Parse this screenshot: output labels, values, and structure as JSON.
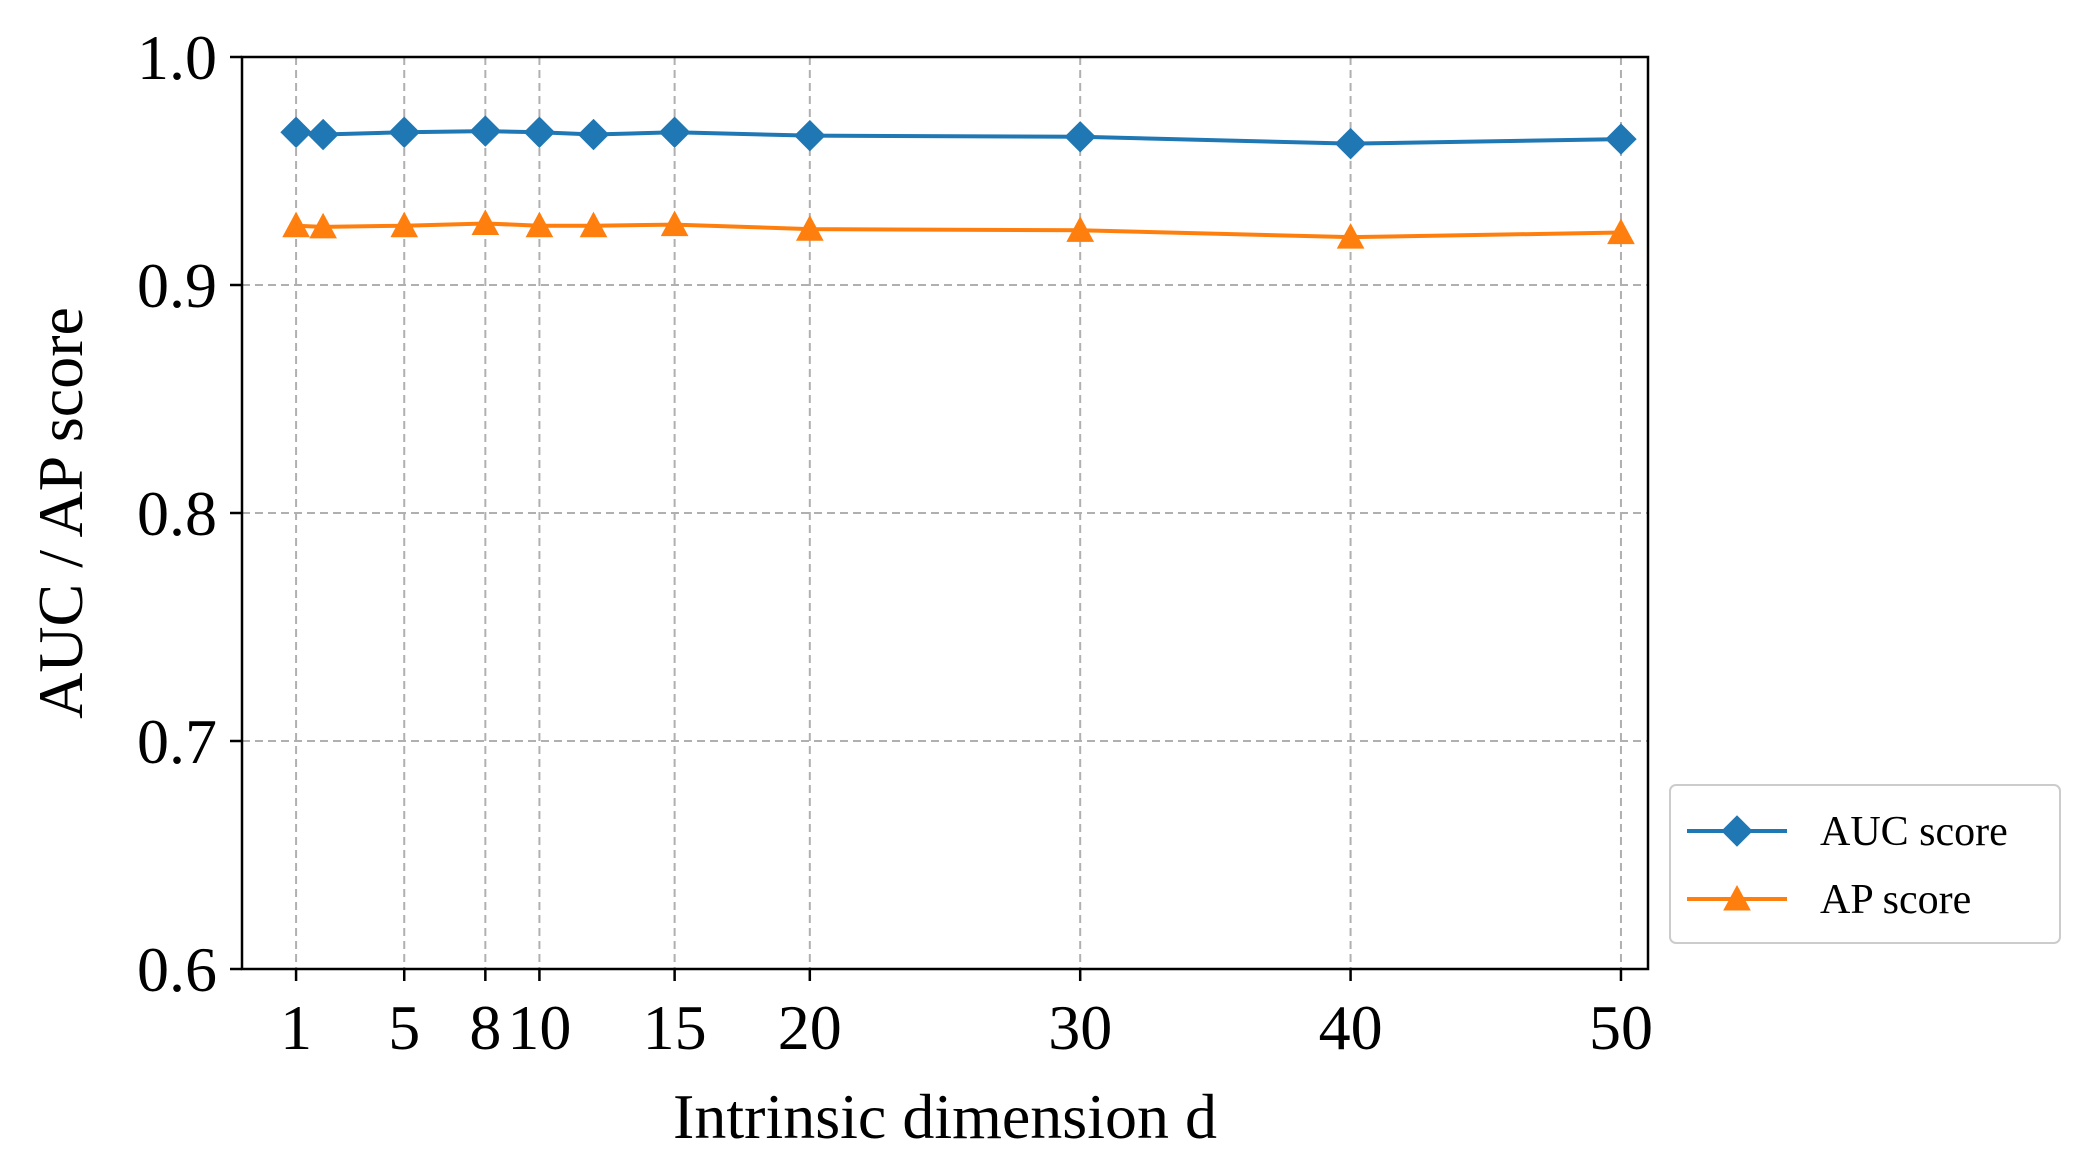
{
  "chart_data": {
    "type": "line",
    "title": "",
    "xlabel": "Intrinsic dimension d",
    "ylabel": "AUC / AP score",
    "x": [
      1,
      2,
      5,
      8,
      10,
      12,
      15,
      20,
      30,
      40,
      50
    ],
    "xlim": [
      -1,
      51
    ],
    "ylim": [
      0.6,
      1.0
    ],
    "xticks": [
      1,
      5,
      8,
      10,
      15,
      20,
      30,
      40,
      50
    ],
    "xtick_labels": [
      "1",
      "5",
      "8",
      "10",
      "15",
      "20",
      "30",
      "40",
      "50"
    ],
    "yticks": [
      0.6,
      0.7,
      0.8,
      0.9,
      1.0
    ],
    "ytick_labels": [
      "0.6",
      "0.7",
      "0.8",
      "0.9",
      "1.0"
    ],
    "grid": true,
    "legend_position": "outside-bottom-right",
    "series": [
      {
        "name": "AUC score",
        "color": "#1f77b4",
        "marker": "diamond",
        "values": [
          0.967,
          0.966,
          0.967,
          0.9675,
          0.967,
          0.966,
          0.967,
          0.9655,
          0.965,
          0.962,
          0.964
        ]
      },
      {
        "name": "AP score",
        "color": "#ff7f0e",
        "marker": "triangle",
        "values": [
          0.926,
          0.9255,
          0.926,
          0.927,
          0.926,
          0.926,
          0.9265,
          0.9245,
          0.924,
          0.921,
          0.923
        ]
      }
    ]
  }
}
